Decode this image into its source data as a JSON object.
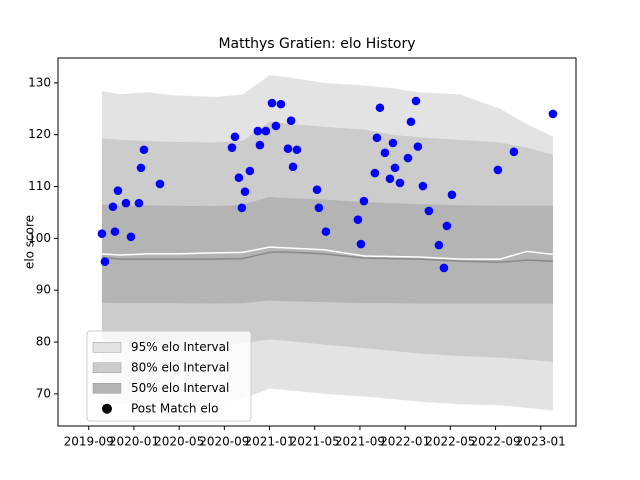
{
  "chart_data": {
    "type": "scatter",
    "title": "Matthys Gratien: elo History",
    "y_label": "elo score",
    "xlim": [
      2019.44,
      2023.26
    ],
    "ylim": [
      63.8,
      134.8
    ],
    "xticks": [
      {
        "value": 2019.6667,
        "label": "2019-09"
      },
      {
        "value": 2020.0,
        "label": "2020-01"
      },
      {
        "value": 2020.3333,
        "label": "2020-05"
      },
      {
        "value": 2020.6667,
        "label": "2020-09"
      },
      {
        "value": 2021.0,
        "label": "2021-01"
      },
      {
        "value": 2021.3333,
        "label": "2021-05"
      },
      {
        "value": 2021.6667,
        "label": "2021-09"
      },
      {
        "value": 2022.0,
        "label": "2022-01"
      },
      {
        "value": 2022.3333,
        "label": "2022-05"
      },
      {
        "value": 2022.6667,
        "label": "2022-09"
      },
      {
        "value": 2023.0,
        "label": "2023-01"
      }
    ],
    "yticks": [
      70,
      80,
      90,
      100,
      110,
      120,
      130
    ],
    "legend": "lower left",
    "band_x": [
      2019.764,
      2019.9,
      2020.1,
      2020.3,
      2020.6,
      2020.8,
      2021.0,
      2021.1,
      2021.4,
      2021.7,
      2021.9,
      2022.1,
      2022.4,
      2022.7,
      2022.9,
      2023.09
    ],
    "bands": [
      {
        "name": "95% elo Interval",
        "color": "#e3e3e3",
        "upper": [
          128.4,
          127.8,
          128.2,
          127.6,
          127.3,
          127.7,
          131.5,
          131.2,
          130.0,
          129.5,
          129.0,
          128.2,
          127.8,
          125.0,
          122.0,
          119.6
        ],
        "lower": [
          68.5,
          68.0,
          68.2,
          68.3,
          68.5,
          69.0,
          71.0,
          70.8,
          70.0,
          69.5,
          69.0,
          68.5,
          68.0,
          67.8,
          67.3,
          66.8
        ]
      },
      {
        "name": "80% elo Interval",
        "color": "#cccccc",
        "upper": [
          119.3,
          119.0,
          118.8,
          118.6,
          118.5,
          118.8,
          122.5,
          122.2,
          121.5,
          121.0,
          120.0,
          119.5,
          119.0,
          118.5,
          117.5,
          116.1
        ],
        "lower": [
          80.5,
          80.0,
          79.8,
          79.6,
          79.5,
          79.8,
          80.5,
          80.3,
          79.5,
          78.8,
          78.3,
          77.8,
          77.3,
          77.0,
          76.6,
          76.2
        ]
      },
      {
        "name": "50% elo Interval",
        "color": "#b4b4b4",
        "upper": [
          106.5,
          106.3,
          106.4,
          106.3,
          106.2,
          106.5,
          108.0,
          107.8,
          107.5,
          107.0,
          106.8,
          106.6,
          106.4,
          106.3,
          106.3,
          106.3
        ],
        "lower": [
          87.6,
          87.5,
          87.5,
          87.5,
          87.4,
          87.5,
          88.0,
          87.9,
          87.7,
          87.5,
          87.5,
          87.4,
          87.4,
          87.4,
          87.4,
          87.4
        ]
      }
    ],
    "lines": [
      {
        "color": "#ffffff",
        "values": [
          97.0,
          96.8,
          97.0,
          97.0,
          97.2,
          97.3,
          98.3,
          98.2,
          97.8,
          96.6,
          96.5,
          96.4,
          96.0,
          96.0,
          97.5,
          96.9
        ]
      },
      {
        "color": "#8a8a8a",
        "values": [
          96.3,
          96.0,
          96.0,
          96.0,
          96.0,
          96.1,
          97.3,
          97.4,
          97.0,
          96.2,
          96.1,
          96.0,
          95.6,
          95.4,
          95.8,
          95.6
        ]
      }
    ],
    "x": [
      2019.764,
      2019.786,
      2019.845,
      2019.86,
      2019.882,
      2019.941,
      2019.978,
      2020.037,
      2020.052,
      2020.074,
      2020.192,
      2020.723,
      2020.745,
      2020.774,
      2020.796,
      2020.819,
      2020.855,
      2020.914,
      2020.929,
      2020.973,
      2021.018,
      2021.047,
      2021.084,
      2021.136,
      2021.159,
      2021.173,
      2021.202,
      2021.35,
      2021.364,
      2021.416,
      2021.652,
      2021.674,
      2021.696,
      2021.777,
      2021.792,
      2021.814,
      2021.851,
      2021.888,
      2021.91,
      2021.925,
      2021.962,
      2022.021,
      2022.043,
      2022.08,
      2022.094,
      2022.131,
      2022.175,
      2022.249,
      2022.286,
      2022.308,
      2022.345,
      2022.684,
      2022.802,
      2023.09
    ],
    "series": [
      {
        "name": "Post Match elo",
        "color": "#0000ff",
        "values": [
          100.9,
          95.5,
          106.1,
          101.3,
          109.2,
          106.8,
          100.3,
          106.8,
          113.6,
          117.1,
          110.5,
          117.5,
          119.6,
          111.7,
          105.9,
          109.0,
          113.0,
          120.7,
          118.0,
          120.7,
          126.1,
          121.7,
          125.9,
          117.3,
          122.7,
          113.8,
          117.1,
          109.4,
          105.9,
          101.3,
          103.6,
          98.9,
          107.2,
          112.6,
          119.4,
          125.2,
          116.5,
          111.5,
          118.4,
          113.6,
          110.7,
          115.5,
          122.5,
          126.5,
          117.7,
          110.1,
          105.3,
          98.7,
          94.3,
          102.4,
          108.4,
          113.2,
          116.7,
          124.0
        ]
      }
    ]
  }
}
